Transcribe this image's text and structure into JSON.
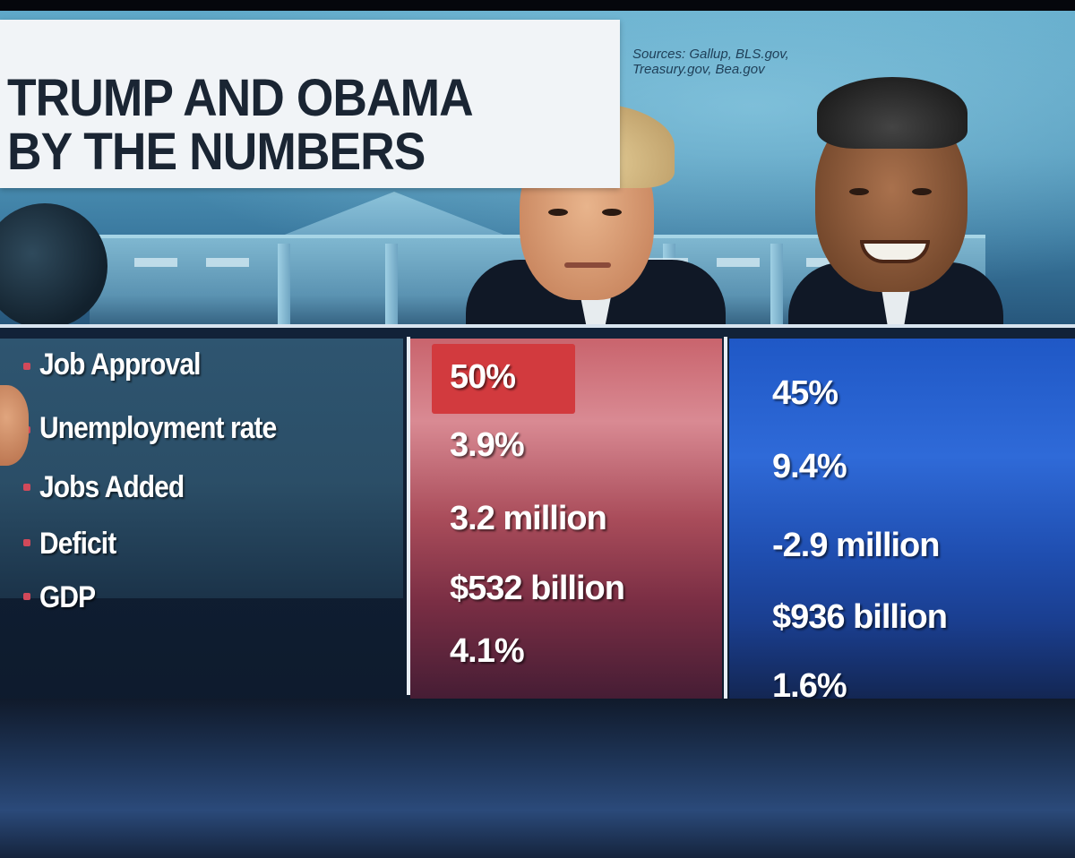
{
  "header": {
    "title_line1": "TRUMP AND OBAMA",
    "title_line2": "BY THE NUMBERS",
    "sources_line1": "Sources: Gallup, BLS.gov,",
    "sources_line2": "Treasury.gov, Bea.gov"
  },
  "rows": [
    {
      "label": "Job Approval",
      "trump": "50%",
      "obama": "45%"
    },
    {
      "label": "Unemployment rate",
      "trump": "3.9%",
      "obama": "9.4%"
    },
    {
      "label": "Jobs Added",
      "trump": "3.2 million",
      "obama": "-2.9 million"
    },
    {
      "label": "Deficit",
      "trump": "$532 billion",
      "obama": "$936 billion"
    },
    {
      "label": "GDP",
      "trump": "4.1%",
      "obama": "1.6%"
    }
  ],
  "colors": {
    "trump_column": "#c9646d",
    "obama_column": "#2f6ad8",
    "highlight": "#d23a3e",
    "title_bg": "#f1f4f7",
    "title_text": "#1a2533"
  }
}
